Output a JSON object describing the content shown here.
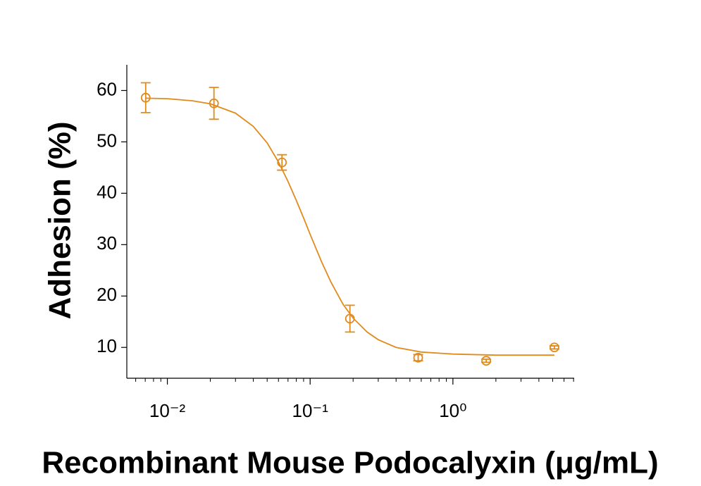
{
  "chart_data": {
    "type": "scatter",
    "x_label": "Recombinant Mouse Podocalyxin (μg/mL)",
    "y_label": "Adhesion (%)",
    "xscale": "log",
    "x": [
      0.00705,
      0.0212,
      0.0635,
      0.19,
      0.571,
      1.71,
      5.14
    ],
    "values": [
      58.6,
      57.5,
      46.0,
      15.6,
      8.0,
      7.4,
      10.0
    ],
    "errors": [
      2.9,
      3.1,
      1.5,
      2.6,
      0.6,
      0.3,
      0.3
    ],
    "fit_x": [
      0.007,
      0.01,
      0.015,
      0.02,
      0.03,
      0.04,
      0.05,
      0.06,
      0.07,
      0.08,
      0.09,
      0.1,
      0.12,
      0.14,
      0.17,
      0.2,
      0.25,
      0.3,
      0.4,
      0.6,
      1,
      2,
      5.14
    ],
    "fit_values": [
      58.5,
      58.4,
      58.0,
      57.4,
      55.6,
      53.0,
      49.8,
      46.1,
      42.3,
      38.6,
      35.2,
      32.0,
      26.7,
      22.7,
      18.4,
      15.7,
      13.0,
      11.5,
      10.0,
      9.1,
      8.7,
      8.5,
      8.5
    ],
    "color": "#e08b1c",
    "xlim": [
      0.0052,
      7.07
    ],
    "ylim": [
      4,
      65
    ],
    "yticks": [
      10,
      20,
      30,
      40,
      50,
      60
    ],
    "xticks": [
      {
        "value": 0.01,
        "label": "10⁻²"
      },
      {
        "value": 0.1,
        "label": "10⁻¹"
      },
      {
        "value": 1,
        "label": "10⁰"
      }
    ],
    "xminor_ticks": [
      0.006,
      0.007,
      0.008,
      0.009,
      0.02,
      0.03,
      0.04,
      0.05,
      0.06,
      0.07,
      0.08,
      0.09,
      0.2,
      0.3,
      0.4,
      0.5,
      0.6,
      0.7,
      0.8,
      0.9,
      2,
      3,
      4,
      5,
      6,
      7
    ]
  }
}
